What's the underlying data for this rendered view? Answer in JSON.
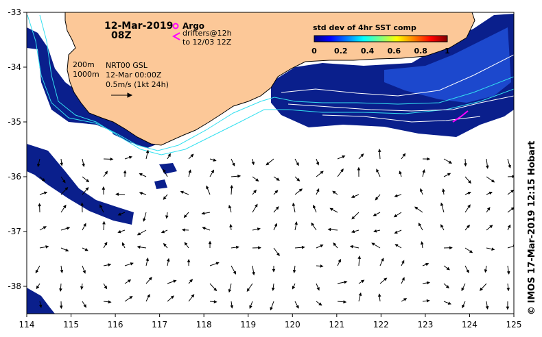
{
  "title": {
    "date": "12-Mar-2019",
    "time": "08Z"
  },
  "legend": {
    "argo_label": "Argo",
    "drifters_line1": "drifters@12h",
    "drifters_line2": "to 12/03 12Z",
    "argo_color": "#ff00ff"
  },
  "annotations": {
    "contour_200": "200m",
    "contour_1000": "1000m",
    "product": "NRT00 GSL",
    "valid_time": "12-Mar 00:00Z",
    "vector_scale": "0.5m/s (1kt 24h)"
  },
  "colorbar": {
    "title": "std dev of 4hr SST comp",
    "ticks": [
      "0",
      "0.2",
      "0.4",
      "0.6",
      "0.8",
      "1"
    ],
    "colors": [
      "#000080",
      "#0000ff",
      "#0080ff",
      "#00ffff",
      "#80ff80",
      "#ffff00",
      "#ff8000",
      "#ff0000",
      "#800000"
    ]
  },
  "axes": {
    "x_ticks": [
      "114",
      "115",
      "116",
      "117",
      "118",
      "119",
      "120",
      "121",
      "122",
      "123",
      "124",
      "125"
    ],
    "y_ticks": [
      "-33",
      "-34",
      "-35",
      "-36",
      "-37",
      "-38"
    ]
  },
  "credit": "© IMOS 17-Mar-2019 12:15 Hobart",
  "colors": {
    "land": "#fcc898",
    "sst_dark": "#0a1f8c",
    "sst_mid": "#1e50d2",
    "contour": "#33e0f0",
    "arrow": "#000000"
  }
}
